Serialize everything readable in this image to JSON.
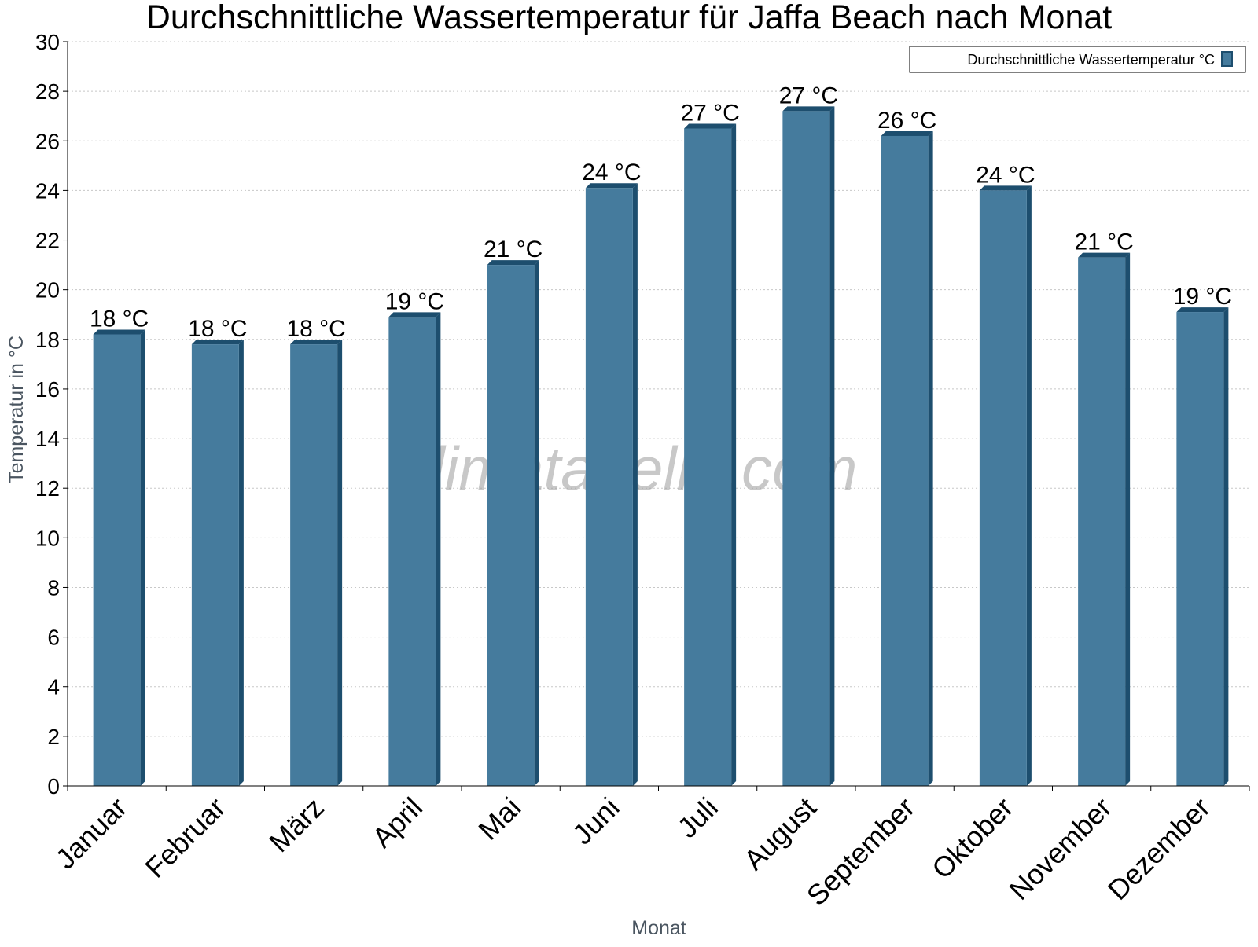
{
  "chart_data": {
    "type": "bar",
    "title": "Durchschnittliche Wassertemperatur für Jaffa Beach nach Monat",
    "xlabel": "Monat",
    "ylabel": "Temperatur in °C",
    "categories": [
      "Januar",
      "Februar",
      "März",
      "April",
      "Mai",
      "Juni",
      "Juli",
      "August",
      "September",
      "Oktober",
      "November",
      "Dezember"
    ],
    "series": [
      {
        "name": "Durchschnittliche Wassertemperatur °C",
        "values": [
          18.2,
          17.8,
          17.8,
          18.9,
          21.0,
          24.1,
          26.5,
          27.2,
          26.2,
          24.0,
          21.3,
          19.1
        ],
        "labels": [
          "18 °C",
          "18 °C",
          "18 °C",
          "19 °C",
          "21 °C",
          "24 °C",
          "27 °C",
          "27 °C",
          "26 °C",
          "24 °C",
          "21 °C",
          "19 °C"
        ],
        "color": "#457b9d",
        "edge_color": "#1d4e6e"
      }
    ],
    "ylim": [
      0,
      30
    ],
    "yticks": [
      0,
      2,
      4,
      6,
      8,
      10,
      12,
      14,
      16,
      18,
      20,
      22,
      24,
      26,
      28,
      30
    ],
    "grid": true,
    "legend_position": "top-right",
    "watermark": "klimatabelle.com"
  }
}
